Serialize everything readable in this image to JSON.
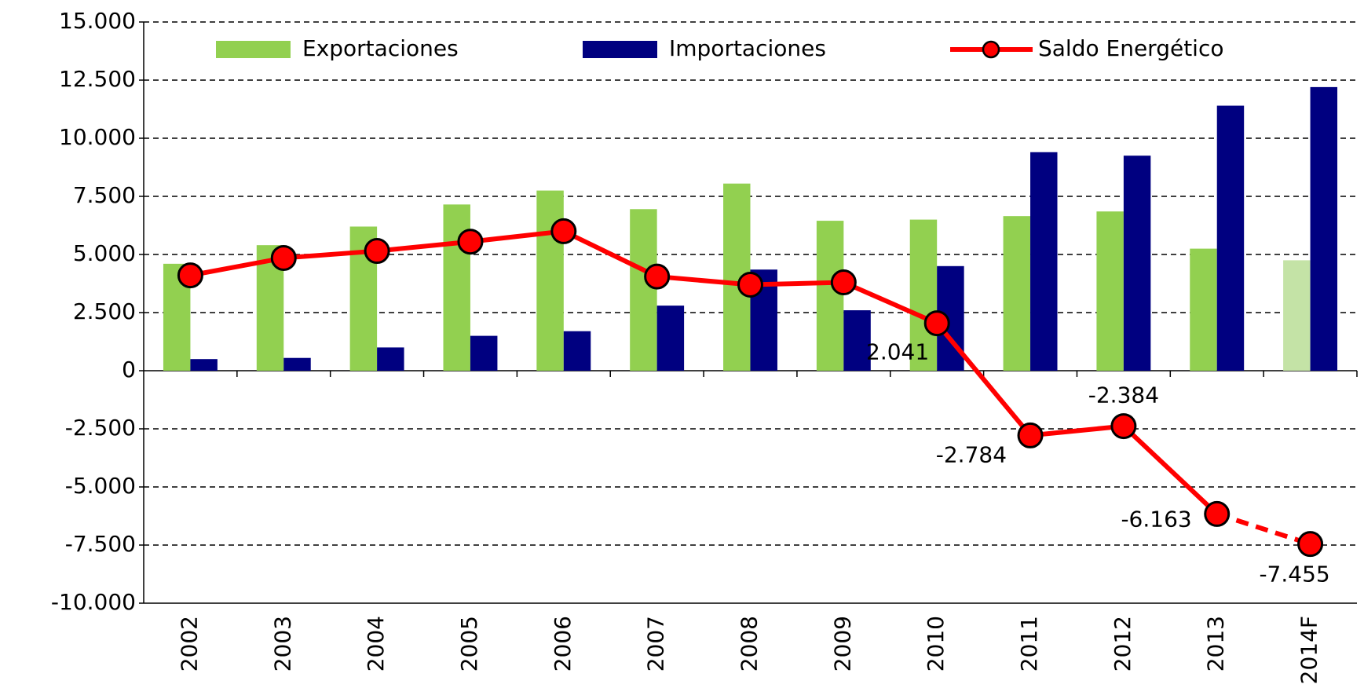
{
  "chart_data": {
    "type": "bar_line",
    "categories": [
      "2002",
      "2003",
      "2004",
      "2005",
      "2006",
      "2007",
      "2008",
      "2009",
      "2010",
      "2011",
      "2012",
      "2013",
      "2014F"
    ],
    "series": [
      {
        "name": "Exportaciones",
        "type": "bar",
        "color": "#92d050",
        "colors": [
          "#92d050",
          "#92d050",
          "#92d050",
          "#92d050",
          "#92d050",
          "#92d050",
          "#92d050",
          "#92d050",
          "#92d050",
          "#92d050",
          "#92d050",
          "#92d050",
          "#c4e3a6"
        ],
        "values": [
          4600,
          5400,
          6200,
          7150,
          7750,
          6950,
          8050,
          6450,
          6500,
          6650,
          6850,
          5250,
          4750
        ]
      },
      {
        "name": "Importaciones",
        "type": "bar",
        "color": "#000080",
        "values": [
          500,
          550,
          1000,
          1500,
          1700,
          2800,
          4350,
          2600,
          4500,
          9400,
          9250,
          11400,
          12200
        ]
      },
      {
        "name": "Saldo Energético",
        "type": "line",
        "color": "#ff0000",
        "marker_color": "#ff0000",
        "dashed_last_segment": true,
        "values": [
          4100,
          4850,
          5150,
          5550,
          6000,
          4050,
          3700,
          3800,
          2041,
          -2784,
          -2384,
          -6163,
          -7455
        ],
        "value_labels": [
          null,
          null,
          null,
          null,
          null,
          null,
          null,
          null,
          "2.041",
          "-2.784",
          "-2.384",
          "-6.163",
          "-7.455"
        ]
      }
    ],
    "ylim": [
      -10000,
      15000
    ],
    "yticks": [
      {
        "value": -10000,
        "label": "-10.000"
      },
      {
        "value": -7500,
        "label": "-7.500"
      },
      {
        "value": -5000,
        "label": "-5.000"
      },
      {
        "value": -2500,
        "label": "-2.500"
      },
      0,
      {
        "value": 2500,
        "label": "2.500"
      },
      {
        "value": 5000,
        "label": "5.000"
      },
      {
        "value": 7500,
        "label": "7.500"
      },
      {
        "value": 10000,
        "label": "10.000"
      },
      {
        "value": 12500,
        "label": "12.500"
      },
      {
        "value": 15000,
        "label": "15.000"
      }
    ],
    "grid": true
  }
}
